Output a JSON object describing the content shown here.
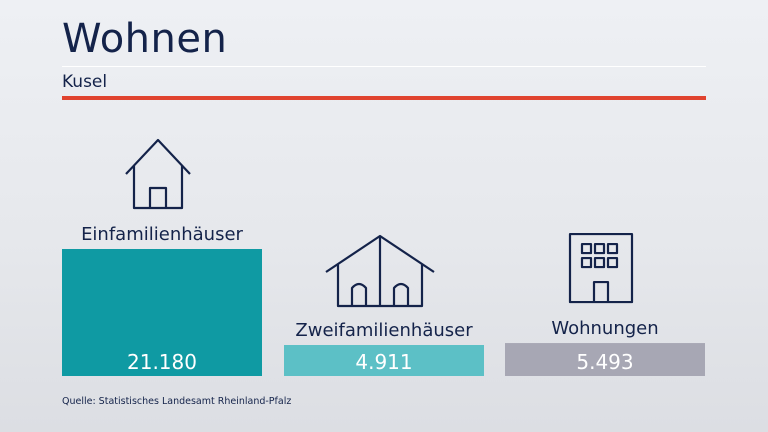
{
  "header": {
    "title": "Wohnen",
    "subtitle": "Kusel"
  },
  "colors": {
    "accent_red": "#e0432f",
    "text": "#14234a"
  },
  "chart_data": {
    "type": "bar",
    "categories": [
      "Einfamilienhäuser",
      "Zweifamilienhäuser",
      "Wohnungen"
    ],
    "values": [
      21180,
      4911,
      5493
    ],
    "value_labels": [
      "21.180",
      "4.911",
      "5.493"
    ],
    "colors": [
      "#0f9aa3",
      "#5cc0c6",
      "#a7a7b4"
    ],
    "icons": [
      "single-house-icon",
      "two-family-house-icon",
      "apartment-building-icon"
    ]
  },
  "footer": {
    "source": "Quelle: Statistisches Landesamt Rheinland-Pfalz"
  }
}
